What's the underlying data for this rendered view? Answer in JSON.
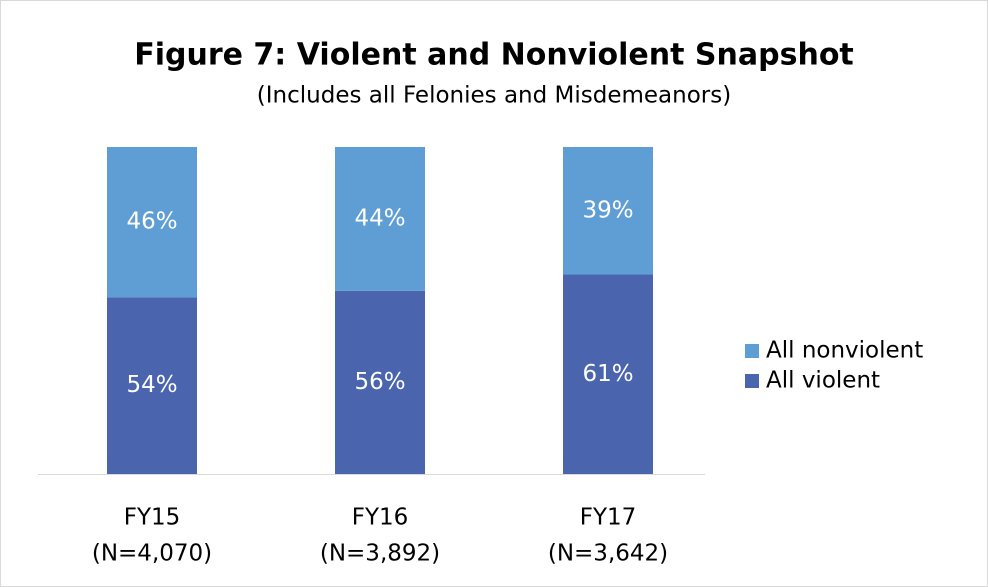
{
  "chart_data": {
    "type": "stacked_bar",
    "title": "Figure 7: Violent and Nonviolent Snapshot",
    "subtitle": "(Includes all Felonies and Misdemeanors)",
    "categories": [
      [
        "FY15",
        "(N=4,070)"
      ],
      [
        "FY16",
        "(N=3,892)"
      ],
      [
        "FY17",
        "(N=3,642)"
      ]
    ],
    "series": [
      {
        "name": "All violent",
        "color": "#4a65ae",
        "values": [
          54,
          56,
          61
        ],
        "value_labels": [
          "54%",
          "56%",
          "61%"
        ]
      },
      {
        "name": "All nonviolent",
        "color": "#5f9ed4",
        "values": [
          46,
          44,
          39
        ],
        "value_labels": [
          "46%",
          "44%",
          "39%"
        ]
      }
    ],
    "ylim": [
      0,
      100
    ],
    "legend": "right"
  }
}
